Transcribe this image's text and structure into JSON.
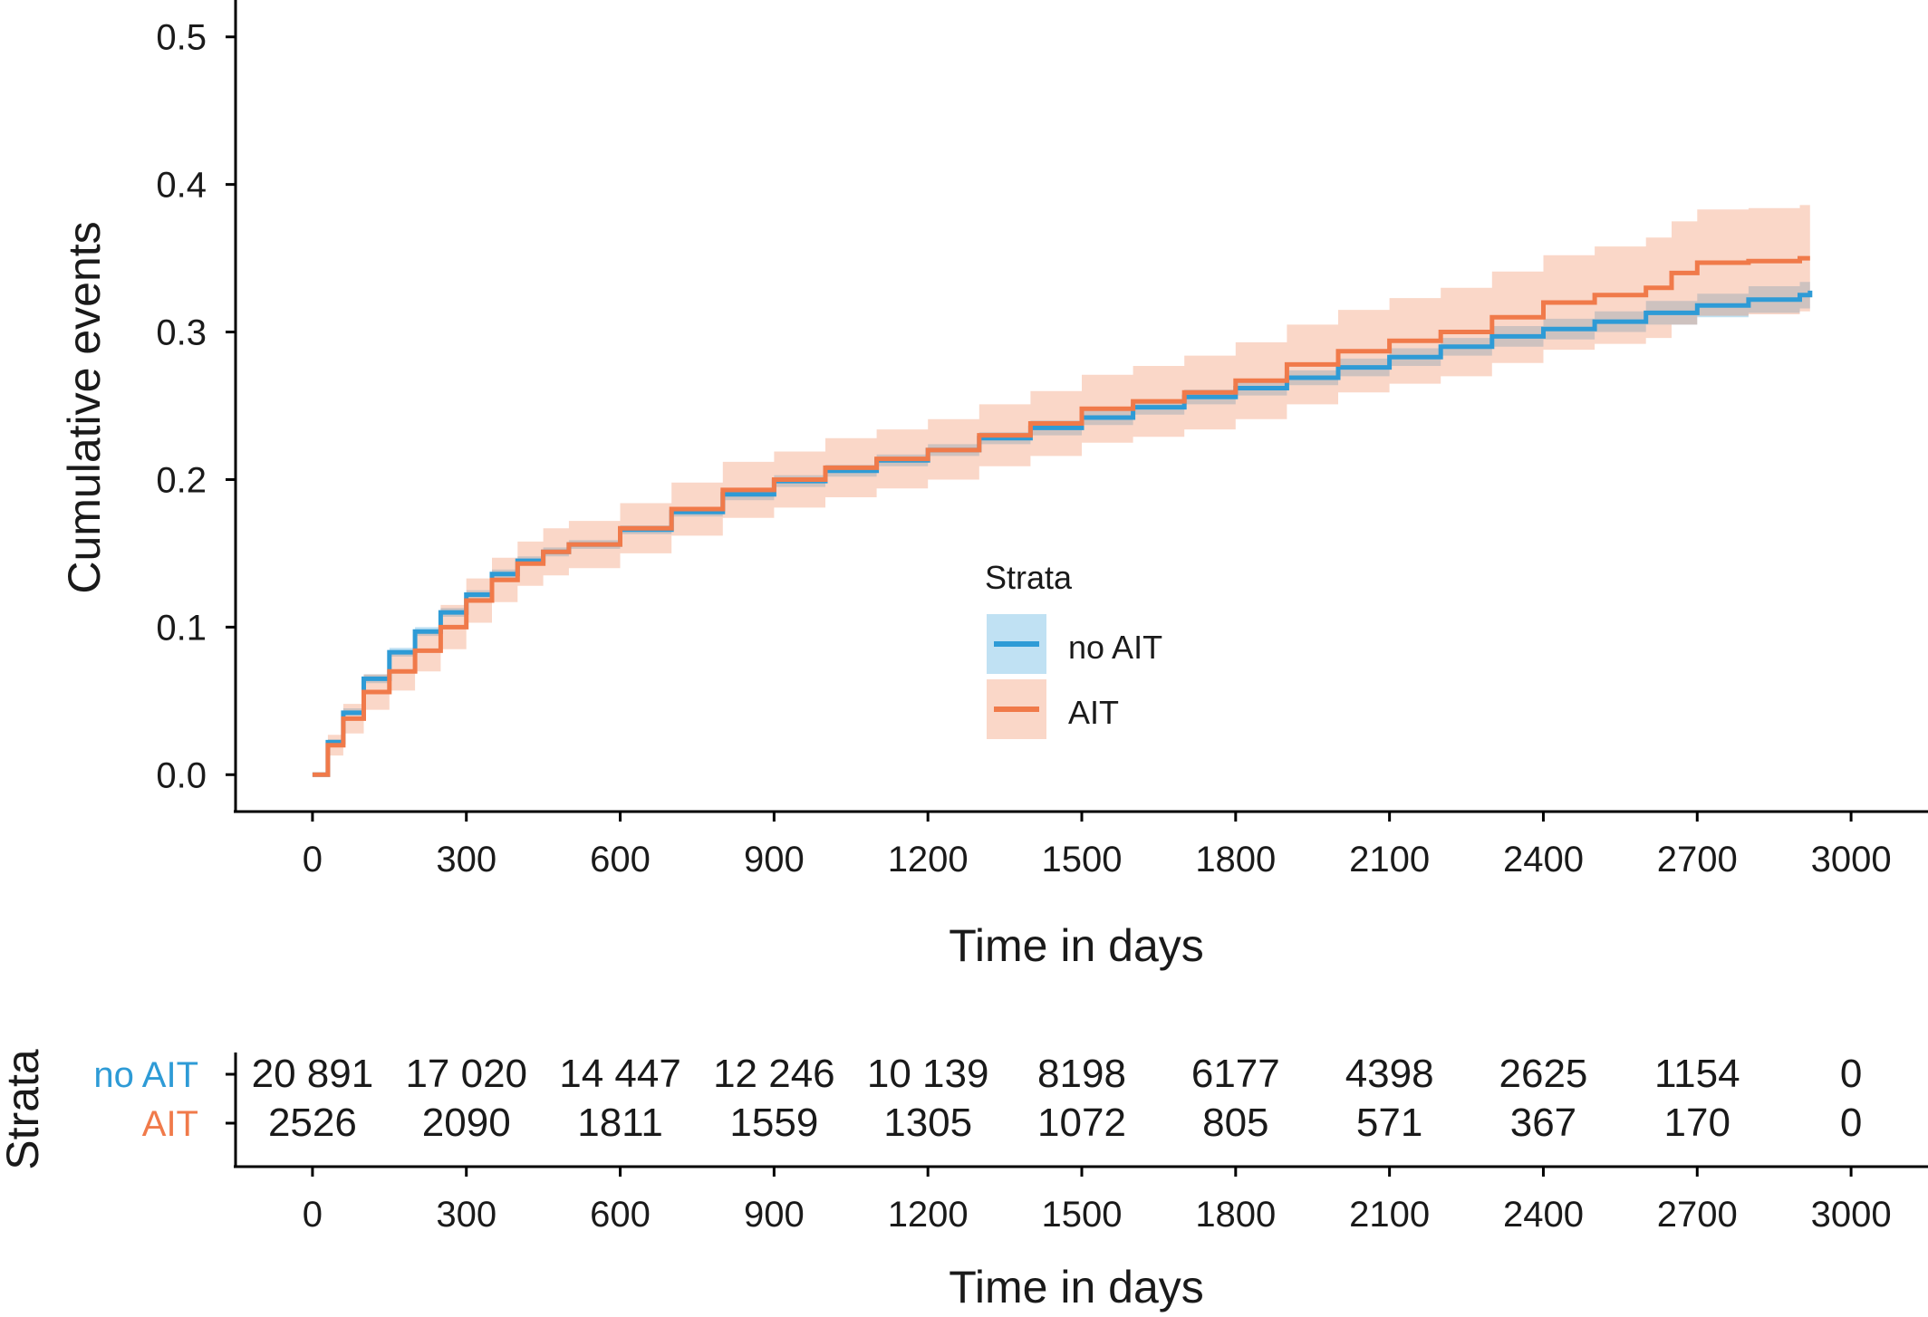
{
  "chart_data": [
    {
      "type": "line",
      "title": "",
      "xlabel": "Time in days",
      "ylabel": "Cumulative events",
      "xlim": [
        -150,
        3150
      ],
      "ylim": [
        -0.025,
        0.525
      ],
      "xticks": [
        0,
        300,
        600,
        900,
        1200,
        1500,
        1800,
        2100,
        2400,
        2700,
        3000
      ],
      "x_tick_labels": [
        "0",
        "300",
        "600",
        "900",
        "1200",
        "1500",
        "1800",
        "2100",
        "2400",
        "2700",
        "3000"
      ],
      "yticks": [
        0,
        0.1,
        0.2,
        0.3,
        0.4,
        0.5
      ],
      "y_tick_labels": [
        "0.0",
        "0.1",
        "0.2",
        "0.3",
        "0.4",
        "0.5"
      ],
      "grid": false,
      "legend": {
        "title": "Strata",
        "placement": "center-right"
      },
      "series": [
        {
          "name": "no AIT",
          "color": "#2e9bd6",
          "x": [
            0,
            30,
            60,
            100,
            150,
            200,
            250,
            300,
            350,
            400,
            450,
            500,
            600,
            700,
            800,
            900,
            1000,
            1100,
            1200,
            1300,
            1400,
            1500,
            1600,
            1700,
            1800,
            1900,
            2000,
            2100,
            2200,
            2300,
            2400,
            2500,
            2600,
            2700,
            2800,
            2900,
            2920
          ],
          "y": [
            0.0,
            0.022,
            0.042,
            0.065,
            0.083,
            0.097,
            0.11,
            0.122,
            0.136,
            0.145,
            0.151,
            0.156,
            0.166,
            0.178,
            0.19,
            0.199,
            0.206,
            0.213,
            0.22,
            0.228,
            0.235,
            0.242,
            0.249,
            0.256,
            0.262,
            0.269,
            0.276,
            0.283,
            0.29,
            0.297,
            0.302,
            0.307,
            0.313,
            0.318,
            0.322,
            0.325,
            0.328
          ],
          "ci_low": [
            0.0,
            0.02,
            0.04,
            0.062,
            0.08,
            0.094,
            0.107,
            0.119,
            0.133,
            0.142,
            0.148,
            0.153,
            0.163,
            0.175,
            0.186,
            0.195,
            0.202,
            0.209,
            0.216,
            0.224,
            0.23,
            0.237,
            0.244,
            0.251,
            0.257,
            0.264,
            0.27,
            0.277,
            0.284,
            0.29,
            0.295,
            0.3,
            0.305,
            0.31,
            0.313,
            0.316,
            0.318
          ],
          "ci_high": [
            0.0,
            0.024,
            0.045,
            0.068,
            0.086,
            0.1,
            0.113,
            0.125,
            0.139,
            0.148,
            0.154,
            0.159,
            0.169,
            0.181,
            0.194,
            0.203,
            0.21,
            0.217,
            0.224,
            0.232,
            0.24,
            0.247,
            0.254,
            0.261,
            0.267,
            0.274,
            0.282,
            0.289,
            0.296,
            0.304,
            0.309,
            0.314,
            0.321,
            0.326,
            0.331,
            0.334,
            0.338
          ]
        },
        {
          "name": "AIT",
          "color": "#f07a4a",
          "x": [
            0,
            30,
            60,
            100,
            150,
            200,
            250,
            300,
            350,
            400,
            450,
            500,
            600,
            700,
            800,
            900,
            1000,
            1100,
            1200,
            1300,
            1400,
            1500,
            1600,
            1700,
            1800,
            1900,
            2000,
            2100,
            2200,
            2300,
            2400,
            2500,
            2600,
            2650,
            2700,
            2800,
            2900,
            2920
          ],
          "y": [
            0.0,
            0.02,
            0.038,
            0.056,
            0.07,
            0.084,
            0.1,
            0.118,
            0.132,
            0.143,
            0.151,
            0.156,
            0.167,
            0.18,
            0.193,
            0.2,
            0.208,
            0.214,
            0.22,
            0.23,
            0.238,
            0.248,
            0.253,
            0.259,
            0.267,
            0.278,
            0.287,
            0.294,
            0.3,
            0.31,
            0.32,
            0.325,
            0.33,
            0.34,
            0.347,
            0.348,
            0.35,
            0.35
          ],
          "ci_low": [
            0.0,
            0.013,
            0.028,
            0.044,
            0.057,
            0.07,
            0.085,
            0.103,
            0.117,
            0.128,
            0.135,
            0.14,
            0.15,
            0.162,
            0.174,
            0.181,
            0.188,
            0.194,
            0.2,
            0.209,
            0.216,
            0.225,
            0.229,
            0.234,
            0.241,
            0.251,
            0.259,
            0.265,
            0.27,
            0.279,
            0.288,
            0.292,
            0.296,
            0.305,
            0.311,
            0.312,
            0.314,
            0.314
          ],
          "ci_high": [
            0.0,
            0.027,
            0.048,
            0.068,
            0.083,
            0.098,
            0.115,
            0.133,
            0.147,
            0.158,
            0.167,
            0.172,
            0.184,
            0.198,
            0.212,
            0.219,
            0.228,
            0.234,
            0.241,
            0.251,
            0.26,
            0.271,
            0.277,
            0.284,
            0.293,
            0.305,
            0.315,
            0.323,
            0.33,
            0.341,
            0.352,
            0.358,
            0.364,
            0.375,
            0.383,
            0.384,
            0.386,
            0.386
          ]
        }
      ]
    },
    {
      "type": "table",
      "title": "",
      "row_axis_label": "Strata",
      "xlabel": "Time in days",
      "xlim": [
        -150,
        3150
      ],
      "xticks": [
        0,
        300,
        600,
        900,
        1200,
        1500,
        1800,
        2100,
        2400,
        2700,
        3000
      ],
      "x_tick_labels": [
        "0",
        "300",
        "600",
        "900",
        "1200",
        "1500",
        "1800",
        "2100",
        "2400",
        "2700",
        "3000"
      ],
      "rows": [
        {
          "name": "no AIT",
          "color": "#2e9bd6",
          "values": [
            "20 891",
            "17 020",
            "14 447",
            "12 246",
            "10 139",
            "8198",
            "6177",
            "4398",
            "2625",
            "1154",
            "0"
          ]
        },
        {
          "name": "AIT",
          "color": "#f07a4a",
          "values": [
            "2526",
            "2090",
            "1811",
            "1559",
            "1305",
            "1072",
            "805",
            "571",
            "367",
            "170",
            "0"
          ]
        }
      ]
    }
  ]
}
